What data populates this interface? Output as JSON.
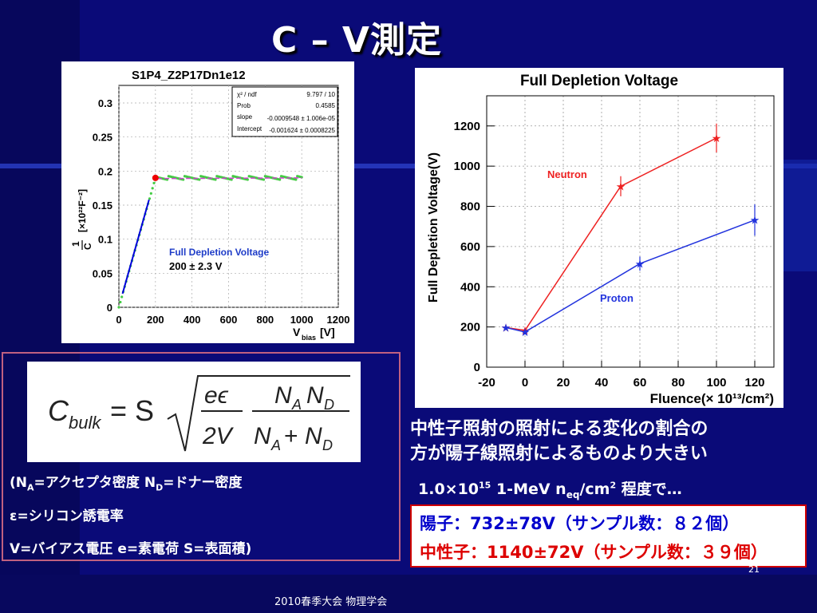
{
  "slide": {
    "title": "C – V測定",
    "page_number": "21",
    "footer": "2010春季大会 物理学会"
  },
  "left_plot": {
    "title": "S1P4_Z2P17Dn1e12",
    "ylabel_num": "1",
    "ylabel_den": "C",
    "ylabel_unit": "[×10²²F⁻²]",
    "xlabel": "V",
    "xlabel_sub": "bias",
    "xlabel_unit": "[V]",
    "fit_stats": [
      {
        "label": "χ² / ndf",
        "value": "9.797 / 10"
      },
      {
        "label": "Prob",
        "value": "0.4585"
      },
      {
        "label": "slope",
        "value": "-0.0009548 ± 1.006e-05"
      },
      {
        "label": "Intercept",
        "value": "-0.001624 ± 0.0008225"
      }
    ],
    "annotation_title": "Full Depletion Voltage",
    "annotation_value": "200 ± 2.3 V",
    "colors": {
      "data": "#44cc44",
      "fit": "#0000dd",
      "plateau": "#cc44cc",
      "point": "#ee0000",
      "annotation": "#1e3cc8"
    }
  },
  "formula": {
    "lhs": "C",
    "lhs_sub": "bulk",
    "eq": "= S",
    "frac1_num": "eϵ",
    "frac1_den": "2V",
    "frac2_num": "N",
    "frac2_den": "N"
  },
  "definitions": {
    "line1_a": "(N",
    "line1_a_sub": "A",
    "line1_b": "=アクセプタ密度 N",
    "line1_b_sub": "D",
    "line1_c": "=ドナー密度",
    "line2": "ε=シリコン誘電率",
    "line3": "V=バイアス電圧 e=素電荷 S=表面積)"
  },
  "note": {
    "line1": "中性子照射の照射による変化の割合の",
    "line2": "方が陽子線照射によるものより大きい",
    "fluence_a": "1.0×10",
    "fluence_sup": "15",
    "fluence_b": " 1-MeV n",
    "fluence_sub": "eq",
    "fluence_c": "/cm",
    "fluence_sup2": "2",
    "fluence_d": " 程度で…"
  },
  "results": {
    "proton": "陽子：732±78V（サンプル数：８２個）",
    "neutron": "中性子：1140±72V（サンプル数：３９個）",
    "proton_color": "#0000cc",
    "neutron_color": "#dd0000"
  },
  "chart_data": [
    {
      "type": "scatter",
      "title": "Full Depletion Voltage",
      "xlabel": "Fluence(× 10¹³/cm²)",
      "ylabel": "Full Depletion Voltage(V)",
      "xlim": [
        -20,
        130
      ],
      "ylim": [
        0,
        1350
      ],
      "xticks": [
        "-20",
        "0",
        "20",
        "40",
        "60",
        "80",
        "100",
        "120"
      ],
      "yticks": [
        "0",
        "200",
        "400",
        "600",
        "800",
        "1000",
        "1200"
      ],
      "grid": true,
      "series": [
        {
          "name": "Neutron",
          "color": "#ee2222",
          "x": [
            -10,
            0,
            50,
            100
          ],
          "y": [
            197,
            183,
            900,
            1140
          ],
          "err": [
            10,
            12,
            50,
            72
          ]
        },
        {
          "name": "Proton",
          "color": "#2233dd",
          "x": [
            -10,
            0,
            60,
            120
          ],
          "y": [
            197,
            175,
            515,
            732
          ],
          "err": [
            10,
            12,
            35,
            78
          ]
        }
      ]
    }
  ]
}
